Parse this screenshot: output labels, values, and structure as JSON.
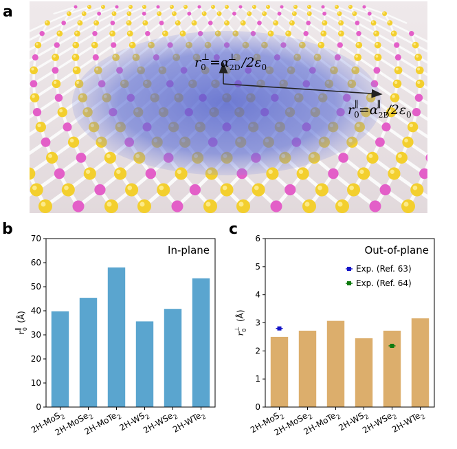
{
  "panel_a": {
    "letter": "a",
    "ann_perp": {
      "r": "r",
      "sub": "0",
      "sup": "⊥",
      "eq": "=",
      "alpha": "α",
      "alpha_sub": "2D",
      "alpha_sup": "⊥",
      "tail": "/2ε",
      "tail_sub": "0"
    },
    "ann_par": {
      "r": "r",
      "sub": "0",
      "sup": "∥",
      "eq": "=",
      "alpha": "α",
      "alpha_sub": "2D",
      "alpha_sup": "∥",
      "tail": "/2ε",
      "tail_sub": "0"
    },
    "colors": {
      "background": "#e7dfe2",
      "cloud": "#5c6fd6",
      "atom_s": "#f3cf2e",
      "atom_m": "#e35fc8",
      "bond": "#fafafa"
    }
  },
  "chart_data": [
    {
      "panel": "b",
      "type": "bar",
      "title": "In-plane",
      "ylabel": {
        "base": "r",
        "sub": "0",
        "sup": "∥",
        "unit": "(Å)"
      },
      "xlabel": "",
      "ylim": [
        0,
        70
      ],
      "yticks": [
        0,
        10,
        20,
        30,
        40,
        50,
        60,
        70
      ],
      "categories": [
        {
          "base": "2H-MoS",
          "sub": "2"
        },
        {
          "base": "2H-MoSe",
          "sub": "2"
        },
        {
          "base": "2H-MoTe",
          "sub": "2"
        },
        {
          "base": "2H-WS",
          "sub": "2"
        },
        {
          "base": "2H-WSe",
          "sub": "2"
        },
        {
          "base": "2H-WTe",
          "sub": "2"
        }
      ],
      "values": [
        39.8,
        45.4,
        58.0,
        35.6,
        40.8,
        53.5
      ],
      "color": "#5aa5cf",
      "grid": false
    },
    {
      "panel": "c",
      "type": "bar",
      "title": "Out-of-plane",
      "ylabel": {
        "base": "r",
        "sub": "0",
        "sup": "⊥",
        "unit": "(Å)"
      },
      "xlabel": "",
      "ylim": [
        0,
        6
      ],
      "yticks": [
        0,
        1,
        2,
        3,
        4,
        5,
        6
      ],
      "categories": [
        {
          "base": "2H-MoS",
          "sub": "2"
        },
        {
          "base": "2H-MoSe",
          "sub": "2"
        },
        {
          "base": "2H-MoTe",
          "sub": "2"
        },
        {
          "base": "2H-WS",
          "sub": "2"
        },
        {
          "base": "2H-WSe",
          "sub": "2"
        },
        {
          "base": "2H-WTe",
          "sub": "2"
        }
      ],
      "values": [
        2.5,
        2.72,
        3.07,
        2.45,
        2.72,
        3.16
      ],
      "color": "#dcae6c",
      "grid": false,
      "legend_position": "top-right",
      "series_points": [
        {
          "name": "Exp. (Ref. 63)",
          "color": "#1515c8",
          "points": [
            {
              "category_index": 0,
              "y": 2.8,
              "err": 0.05
            }
          ]
        },
        {
          "name": "Exp. (Ref. 64)",
          "color": "#0f7a0f",
          "points": [
            {
              "category_index": 4,
              "y": 2.18,
              "err": 0.05
            }
          ]
        }
      ]
    }
  ]
}
